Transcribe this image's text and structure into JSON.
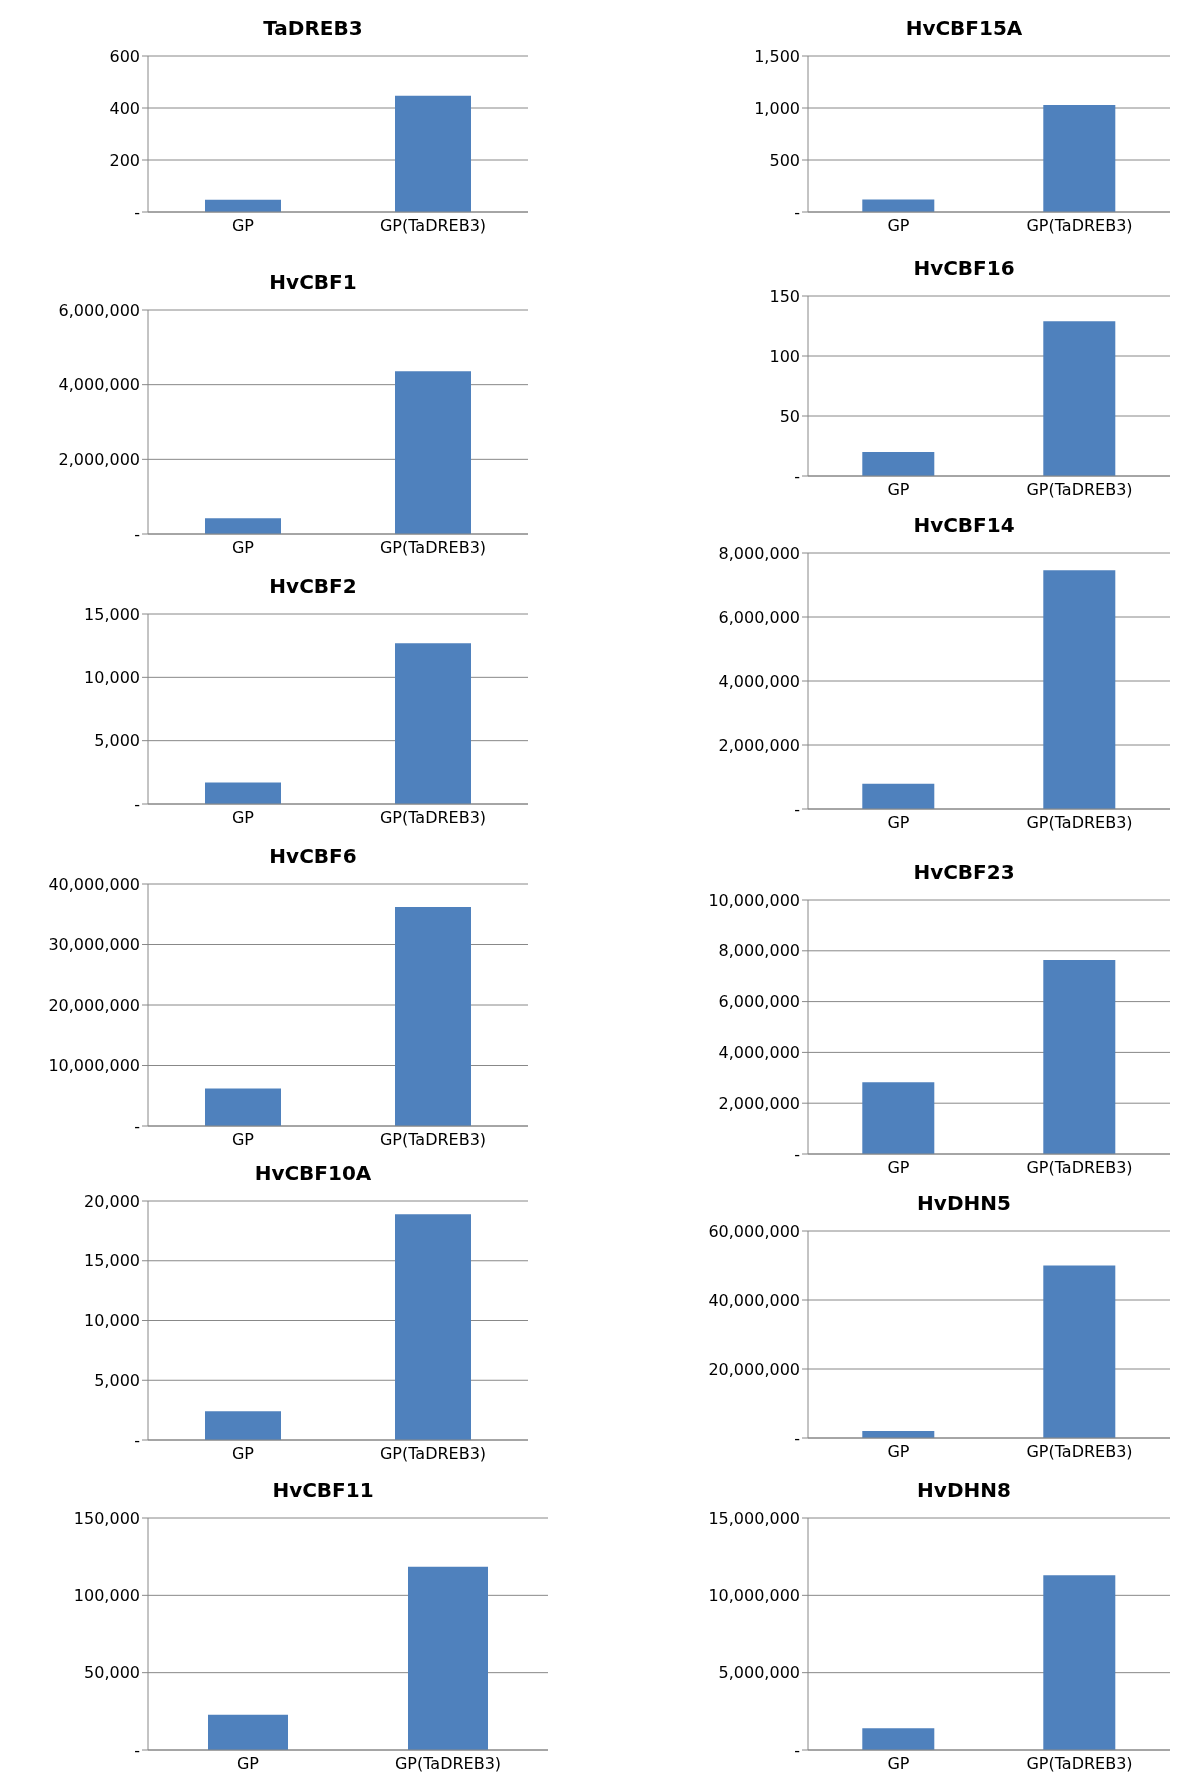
{
  "chart_data": [
    {
      "type": "bar",
      "title": "TaDREB3",
      "categories": [
        "GP",
        "GP(TaDREB3)"
      ],
      "values": [
        47,
        447
      ],
      "color": "#4f81bd",
      "ylim": [
        0,
        600
      ],
      "yticks": [
        {
          "value": 0,
          "label": "-"
        },
        200,
        400,
        600
      ],
      "grid": "y"
    },
    {
      "type": "bar",
      "title": "HvCBF15A",
      "categories": [
        "GP",
        "GP(TaDREB3)"
      ],
      "values": [
        120,
        1030
      ],
      "color": "#4f81bd",
      "ylim": [
        0,
        1500
      ],
      "yticks": [
        {
          "value": 0,
          "label": "-"
        },
        500,
        {
          "value": 1000,
          "label": "1,000"
        },
        {
          "value": 1500,
          "label": "1,500"
        }
      ],
      "grid": "y"
    },
    {
      "type": "bar",
      "title": "HvCBF1",
      "categories": [
        "GP",
        "GP(TaDREB3)"
      ],
      "values": [
        420000,
        4360000
      ],
      "color": "#4f81bd",
      "ylim": [
        0,
        6000000
      ],
      "yticks": [
        {
          "value": 0,
          "label": "-"
        },
        {
          "value": 2000000,
          "label": "2,000,000"
        },
        {
          "value": 4000000,
          "label": "4,000,000"
        },
        {
          "value": 6000000,
          "label": "6,000,000"
        }
      ],
      "grid": "y"
    },
    {
      "type": "bar",
      "title": "HvCBF16",
      "categories": [
        "GP",
        "GP(TaDREB3)"
      ],
      "values": [
        20,
        129
      ],
      "color": "#4f81bd",
      "ylim": [
        0,
        150
      ],
      "yticks": [
        {
          "value": 0,
          "label": "-"
        },
        50,
        100,
        150
      ],
      "grid": "y"
    },
    {
      "type": "bar",
      "title": "HvCBF2",
      "categories": [
        "GP",
        "GP(TaDREB3)"
      ],
      "values": [
        1700,
        12700
      ],
      "color": "#4f81bd",
      "ylim": [
        0,
        15000
      ],
      "yticks": [
        {
          "value": 0,
          "label": "-"
        },
        {
          "value": 5000,
          "label": "5,000"
        },
        {
          "value": 10000,
          "label": "10,000"
        },
        {
          "value": 15000,
          "label": "15,000"
        }
      ],
      "grid": "y"
    },
    {
      "type": "bar",
      "title": "HvCBF14",
      "categories": [
        "GP",
        "GP(TaDREB3)"
      ],
      "values": [
        790000,
        7460000
      ],
      "color": "#4f81bd",
      "ylim": [
        0,
        8000000
      ],
      "yticks": [
        {
          "value": 0,
          "label": "-"
        },
        {
          "value": 2000000,
          "label": "2,000,000"
        },
        {
          "value": 4000000,
          "label": "4,000,000"
        },
        {
          "value": 6000000,
          "label": "6,000,000"
        },
        {
          "value": 8000000,
          "label": "8,000,000"
        }
      ],
      "grid": "y"
    },
    {
      "type": "bar",
      "title": "HvCBF6",
      "categories": [
        "GP",
        "GP(TaDREB3)"
      ],
      "values": [
        6200000,
        36200000
      ],
      "color": "#4f81bd",
      "ylim": [
        0,
        40000000
      ],
      "yticks": [
        {
          "value": 0,
          "label": "-"
        },
        {
          "value": 10000000,
          "label": "10,000,000"
        },
        {
          "value": 20000000,
          "label": "20,000,000"
        },
        {
          "value": 30000000,
          "label": "30,000,000"
        },
        {
          "value": 40000000,
          "label": "40,000,000"
        }
      ],
      "grid": "y"
    },
    {
      "type": "bar",
      "title": "HvCBF23",
      "categories": [
        "GP",
        "GP(TaDREB3)"
      ],
      "values": [
        2820000,
        7640000
      ],
      "color": "#4f81bd",
      "ylim": [
        0,
        10000000
      ],
      "yticks": [
        {
          "value": 0,
          "label": "-"
        },
        {
          "value": 2000000,
          "label": "2,000,000"
        },
        {
          "value": 4000000,
          "label": "4,000,000"
        },
        {
          "value": 6000000,
          "label": "6,000,000"
        },
        {
          "value": 8000000,
          "label": "8,000,000"
        },
        {
          "value": 10000000,
          "label": "10,000,000"
        }
      ],
      "grid": "y"
    },
    {
      "type": "bar",
      "title": "HvCBF10A",
      "categories": [
        "GP",
        "GP(TaDREB3)"
      ],
      "values": [
        2400,
        18900
      ],
      "color": "#4f81bd",
      "ylim": [
        0,
        20000
      ],
      "yticks": [
        {
          "value": 0,
          "label": "-"
        },
        {
          "value": 5000,
          "label": "5,000"
        },
        {
          "value": 10000,
          "label": "10,000"
        },
        {
          "value": 15000,
          "label": "15,000"
        },
        {
          "value": 20000,
          "label": "20,000"
        }
      ],
      "grid": "y"
    },
    {
      "type": "bar",
      "title": "HvDHN5",
      "categories": [
        "GP",
        "GP(TaDREB3)"
      ],
      "values": [
        2000000,
        50000000
      ],
      "color": "#4f81bd",
      "ylim": [
        0,
        60000000
      ],
      "yticks": [
        {
          "value": 0,
          "label": "-"
        },
        {
          "value": 20000000,
          "label": "20,000,000"
        },
        {
          "value": 40000000,
          "label": "40,000,000"
        },
        {
          "value": 60000000,
          "label": "60,000,000"
        }
      ],
      "grid": "y"
    },
    {
      "type": "bar",
      "title": "HvCBF11",
      "categories": [
        "GP",
        "GP(TaDREB3)"
      ],
      "values": [
        22800,
        118400
      ],
      "color": "#4f81bd",
      "ylim": [
        0,
        150000
      ],
      "yticks": [
        {
          "value": 0,
          "label": "-"
        },
        {
          "value": 50000,
          "label": "50,000"
        },
        {
          "value": 100000,
          "label": "100,000"
        },
        {
          "value": 150000,
          "label": "150,000"
        }
      ],
      "grid": "y"
    },
    {
      "type": "bar",
      "title": "HvDHN8",
      "categories": [
        "GP",
        "GP(TaDREB3)"
      ],
      "values": [
        1400000,
        11300000
      ],
      "color": "#4f81bd",
      "ylim": [
        0,
        15000000
      ],
      "yticks": [
        {
          "value": 0,
          "label": "-"
        },
        {
          "value": 5000000,
          "label": "5,000,000"
        },
        {
          "value": 10000000,
          "label": "10,000,000"
        },
        {
          "value": 15000000,
          "label": "15,000,000"
        }
      ],
      "grid": "y"
    }
  ]
}
